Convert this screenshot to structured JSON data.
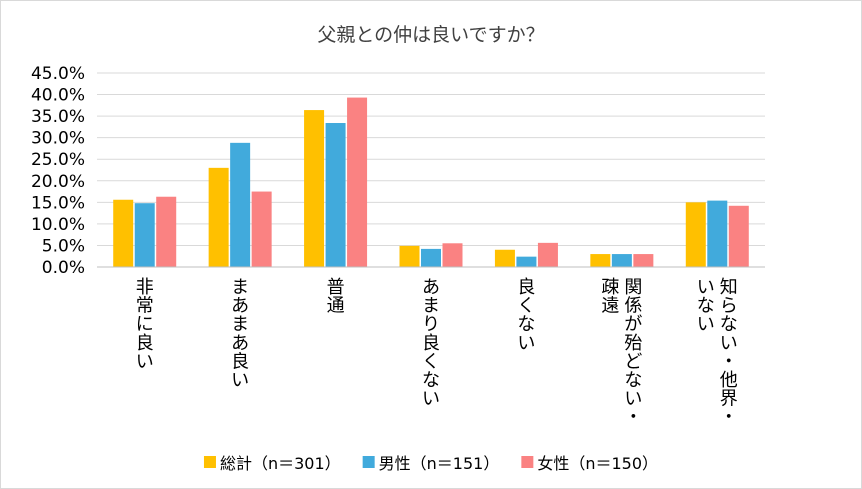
{
  "chart_data": {
    "type": "bar",
    "title": "父親との仲は良いですか？",
    "xlabel": "",
    "ylabel": "",
    "ylim": [
      0,
      45
    ],
    "y_ticks": [
      "0.0%",
      "5.0%",
      "10.0%",
      "15.0%",
      "20.0%",
      "25.0%",
      "30.0%",
      "35.0%",
      "40.0%",
      "45.0%"
    ],
    "grid": true,
    "legend_position": "bottom",
    "categories": [
      [
        "非常に良い"
      ],
      [
        "まあまあ良い"
      ],
      [
        "普通"
      ],
      [
        "あまり良くない"
      ],
      [
        "良くない"
      ],
      [
        "関係が殆どない・",
        "疎遠"
      ],
      [
        "知らない・他界・",
        "いない"
      ]
    ],
    "series": [
      {
        "name": "総計（n＝301）",
        "color": "#FFC000",
        "values": [
          15.6,
          23.0,
          36.4,
          4.9,
          4.0,
          3.0,
          15.0
        ]
      },
      {
        "name": "男性（n＝151）",
        "color": "#41AADC",
        "values": [
          14.8,
          28.8,
          33.4,
          4.2,
          2.4,
          3.0,
          15.4
        ]
      },
      {
        "name": "女性（n＝150）",
        "color": "#FA8282",
        "values": [
          16.3,
          17.5,
          39.3,
          5.5,
          5.6,
          3.0,
          14.2
        ]
      }
    ]
  }
}
